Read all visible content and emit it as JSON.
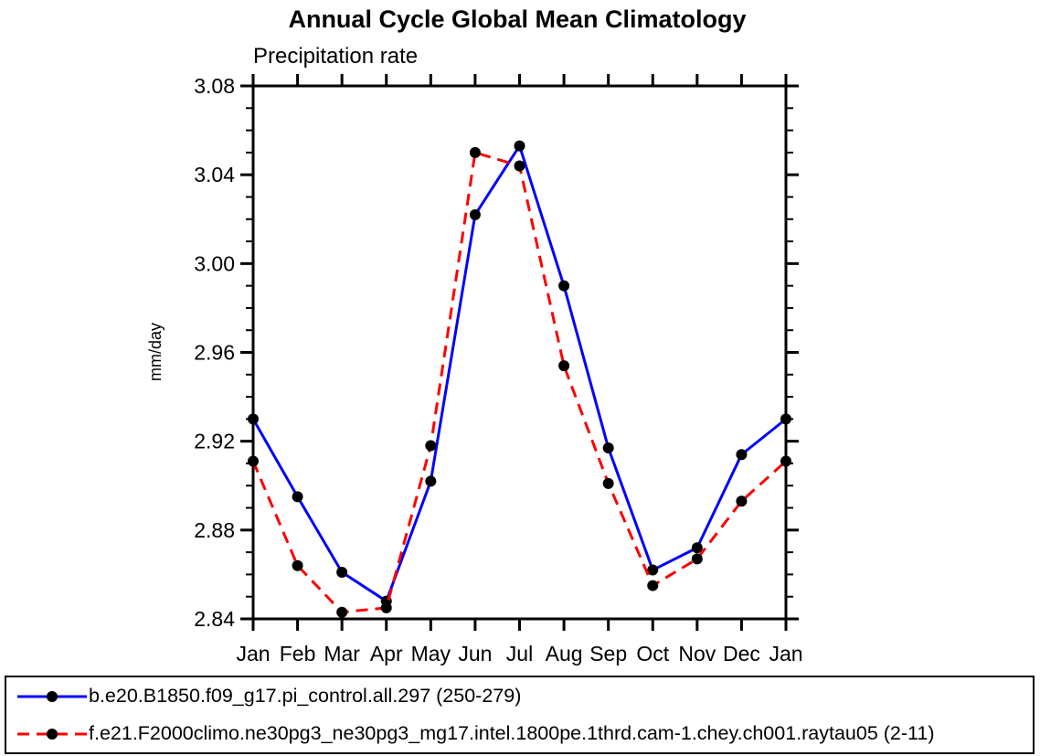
{
  "page": {
    "background_color": "#ffffff",
    "axis_color": "#000000",
    "text_color": "#000000"
  },
  "chart_data": {
    "type": "line",
    "title": "Annual Cycle Global Mean Climatology",
    "subtitle": "Precipitation rate",
    "ylabel": "mm/day",
    "xlabel": "",
    "categories": [
      "Jan",
      "Feb",
      "Mar",
      "Apr",
      "May",
      "Jun",
      "Jul",
      "Aug",
      "Sep",
      "Oct",
      "Nov",
      "Dec",
      "Jan"
    ],
    "ylim": [
      2.84,
      3.08
    ],
    "ytick_step_major": 0.04,
    "ytick_step_minor": 0.01,
    "yticklabels": [
      "2.84",
      "2.88",
      "2.92",
      "2.96",
      "3.00",
      "3.04",
      "3.08"
    ],
    "grid": false,
    "legend_position": "bottom",
    "marker": {
      "shape": "circle",
      "color": "#000000",
      "radius": 6
    },
    "series": [
      {
        "name": "b.e20.B1850.f09_g17.pi_control.all.297 (250-279)",
        "color": "#0000ff",
        "style": "solid",
        "values": [
          2.93,
          2.895,
          2.861,
          2.848,
          2.902,
          3.022,
          3.053,
          2.99,
          2.917,
          2.862,
          2.872,
          2.914,
          2.93
        ]
      },
      {
        "name": "f.e21.F2000climo.ne30pg3_ne30pg3_mg17.intel.1800pe.1thrd.cam-1.chey.ch001.raytau05 (2-11)",
        "color": "#ff0000",
        "style": "dashed",
        "values": [
          2.911,
          2.864,
          2.843,
          2.845,
          2.918,
          3.05,
          3.044,
          2.954,
          2.901,
          2.855,
          2.867,
          2.893,
          2.911
        ]
      }
    ]
  }
}
